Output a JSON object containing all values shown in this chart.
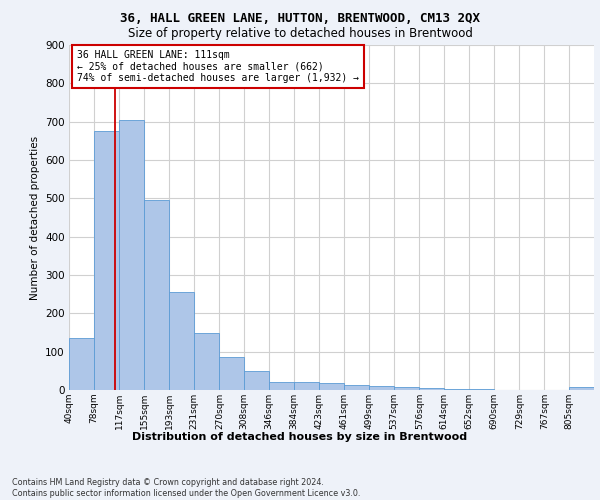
{
  "title1": "36, HALL GREEN LANE, HUTTON, BRENTWOOD, CM13 2QX",
  "title2": "Size of property relative to detached houses in Brentwood",
  "xlabel": "Distribution of detached houses by size in Brentwood",
  "ylabel": "Number of detached properties",
  "bin_labels": [
    "40sqm",
    "78sqm",
    "117sqm",
    "155sqm",
    "193sqm",
    "231sqm",
    "270sqm",
    "308sqm",
    "346sqm",
    "384sqm",
    "423sqm",
    "461sqm",
    "499sqm",
    "537sqm",
    "576sqm",
    "614sqm",
    "652sqm",
    "690sqm",
    "729sqm",
    "767sqm",
    "805sqm"
  ],
  "bar_heights": [
    135,
    675,
    705,
    495,
    255,
    150,
    87,
    50,
    22,
    20,
    17,
    12,
    10,
    9,
    6,
    3,
    2,
    1,
    0,
    0,
    9
  ],
  "bin_edges": [
    40,
    78,
    117,
    155,
    193,
    231,
    270,
    308,
    346,
    384,
    423,
    461,
    499,
    537,
    576,
    614,
    652,
    690,
    729,
    767,
    805,
    843
  ],
  "bar_color": "#aec6e8",
  "bar_edge_color": "#5b9bd5",
  "property_size": 111,
  "red_line_color": "#cc0000",
  "annotation_line1": "36 HALL GREEN LANE: 111sqm",
  "annotation_line2": "← 25% of detached houses are smaller (662)",
  "annotation_line3": "74% of semi-detached houses are larger (1,932) →",
  "annotation_box_color": "#ffffff",
  "annotation_box_edge": "#cc0000",
  "footer_text": "Contains HM Land Registry data © Crown copyright and database right 2024.\nContains public sector information licensed under the Open Government Licence v3.0.",
  "bg_color": "#eef2f9",
  "plot_bg_color": "#ffffff",
  "grid_color": "#d0d0d0",
  "ylim": [
    0,
    900
  ],
  "yticks": [
    0,
    100,
    200,
    300,
    400,
    500,
    600,
    700,
    800,
    900
  ]
}
